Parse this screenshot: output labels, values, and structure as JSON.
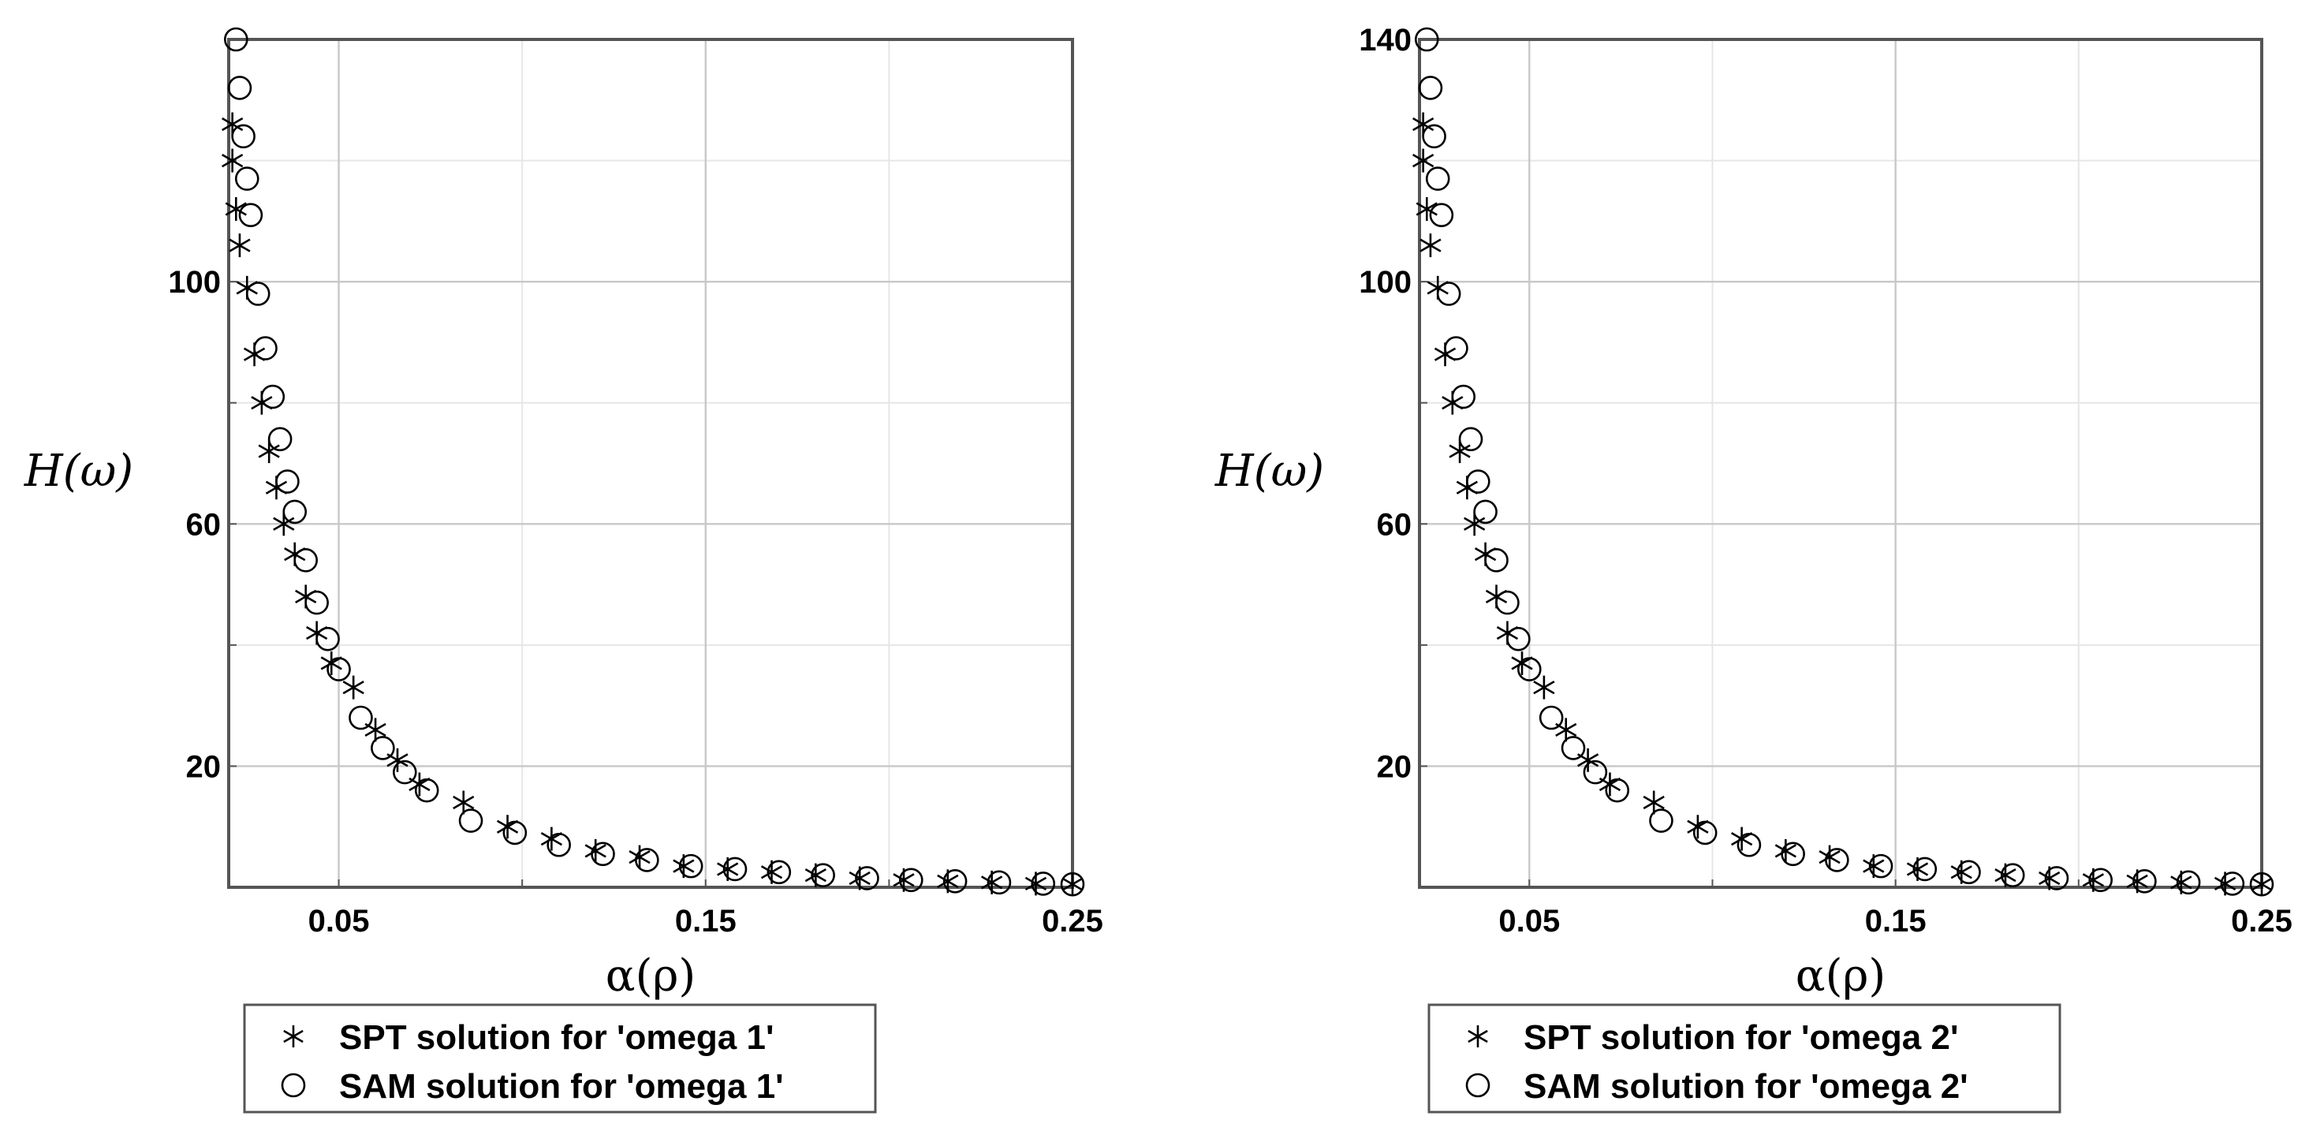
{
  "chart_data": [
    {
      "type": "scatter",
      "xlabel": "α(ρ)",
      "ylabel": "H(ω)",
      "xlim": [
        0.02,
        0.25
      ],
      "ylim": [
        0,
        140
      ],
      "x_ticks": [
        0.05,
        0.15,
        0.25
      ],
      "x_tick_labels": [
        "0.05",
        "0.15",
        "0.25"
      ],
      "y_ticks": [
        20,
        60,
        100
      ],
      "y_tick_labels": [
        "20",
        "60",
        "100"
      ],
      "grid": true,
      "legend_position": "bottom",
      "series": [
        {
          "name": "SPT solution for 'omega 1'",
          "marker": "star",
          "x": [
            0.021,
            0.021,
            0.022,
            0.023,
            0.025,
            0.027,
            0.029,
            0.031,
            0.033,
            0.035,
            0.038,
            0.041,
            0.044,
            0.048,
            0.054,
            0.06,
            0.066,
            0.072,
            0.084,
            0.096,
            0.108,
            0.12,
            0.132,
            0.144,
            0.156,
            0.168,
            0.18,
            0.192,
            0.204,
            0.216,
            0.228,
            0.24,
            0.25
          ],
          "y": [
            126,
            120,
            112,
            106,
            99,
            88,
            80,
            72,
            66,
            60,
            55,
            48,
            42,
            37,
            33,
            26,
            21,
            17,
            14,
            10,
            8,
            6,
            5,
            3.5,
            3,
            2.5,
            2,
            1.5,
            1.2,
            1,
            0.8,
            0.6,
            0.5
          ]
        },
        {
          "name": "SAM solution for 'omega 1'",
          "marker": "circle",
          "x": [
            0.022,
            0.023,
            0.024,
            0.025,
            0.026,
            0.028,
            0.03,
            0.032,
            0.034,
            0.036,
            0.038,
            0.041,
            0.044,
            0.047,
            0.05,
            0.056,
            0.062,
            0.068,
            0.074,
            0.086,
            0.098,
            0.11,
            0.122,
            0.134,
            0.146,
            0.158,
            0.17,
            0.182,
            0.194,
            0.206,
            0.218,
            0.23,
            0.242,
            0.25
          ],
          "y": [
            140,
            132,
            124,
            117,
            111,
            98,
            89,
            81,
            74,
            67,
            62,
            54,
            47,
            41,
            36,
            28,
            23,
            19,
            16,
            11,
            9,
            7,
            5.5,
            4.5,
            3.5,
            3,
            2.5,
            2,
            1.5,
            1.2,
            1,
            0.8,
            0.6,
            0.5
          ]
        }
      ]
    },
    {
      "type": "scatter",
      "xlabel": "α(ρ)",
      "ylabel": "H(ω)",
      "xlim": [
        0.02,
        0.25
      ],
      "ylim": [
        0,
        140
      ],
      "x_ticks": [
        0.05,
        0.15,
        0.25
      ],
      "x_tick_labels": [
        "0.05",
        "0.15",
        "0.25"
      ],
      "y_ticks": [
        20,
        60,
        100,
        140
      ],
      "y_tick_labels": [
        "20",
        "60",
        "100",
        "140"
      ],
      "grid": true,
      "legend_position": "bottom",
      "series": [
        {
          "name": "SPT solution for 'omega 2'",
          "marker": "star",
          "x": [
            0.021,
            0.021,
            0.022,
            0.023,
            0.025,
            0.027,
            0.029,
            0.031,
            0.033,
            0.035,
            0.038,
            0.041,
            0.044,
            0.048,
            0.054,
            0.06,
            0.066,
            0.072,
            0.084,
            0.096,
            0.108,
            0.12,
            0.132,
            0.144,
            0.156,
            0.168,
            0.18,
            0.192,
            0.204,
            0.216,
            0.228,
            0.24,
            0.25
          ],
          "y": [
            126,
            120,
            112,
            106,
            99,
            88,
            80,
            72,
            66,
            60,
            55,
            48,
            42,
            37,
            33,
            26,
            21,
            17,
            14,
            10,
            8,
            6,
            5,
            3.5,
            3,
            2.5,
            2,
            1.5,
            1.2,
            1,
            0.8,
            0.6,
            0.5
          ]
        },
        {
          "name": "SAM solution for 'omega 2'",
          "marker": "circle",
          "x": [
            0.022,
            0.023,
            0.024,
            0.025,
            0.026,
            0.028,
            0.03,
            0.032,
            0.034,
            0.036,
            0.038,
            0.041,
            0.044,
            0.047,
            0.05,
            0.056,
            0.062,
            0.068,
            0.074,
            0.086,
            0.098,
            0.11,
            0.122,
            0.134,
            0.146,
            0.158,
            0.17,
            0.182,
            0.194,
            0.206,
            0.218,
            0.23,
            0.242,
            0.25
          ],
          "y": [
            140,
            132,
            124,
            117,
            111,
            98,
            89,
            81,
            74,
            67,
            62,
            54,
            47,
            41,
            36,
            28,
            23,
            19,
            16,
            11,
            9,
            7,
            5.5,
            4.5,
            3.5,
            3,
            2.5,
            2,
            1.5,
            1.2,
            1,
            0.8,
            0.6,
            0.5
          ]
        }
      ]
    }
  ]
}
